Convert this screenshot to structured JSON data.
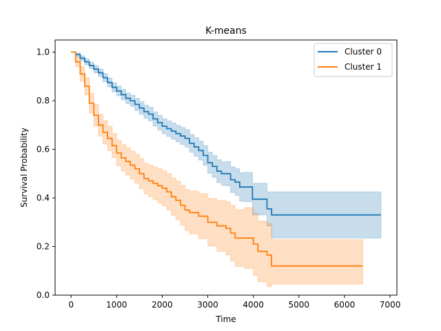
{
  "chart_data": {
    "type": "line",
    "title": "K-means",
    "xlabel": "Time",
    "ylabel": "Survival Probability",
    "xlim": [
      -350,
      7150
    ],
    "ylim": [
      0,
      1.05
    ],
    "xticks": [
      0,
      1000,
      2000,
      3000,
      4000,
      5000,
      6000,
      7000
    ],
    "yticks": [
      0.0,
      0.2,
      0.4,
      0.6,
      0.8,
      1.0
    ],
    "xtick_labels": [
      "0",
      "1000",
      "2000",
      "3000",
      "4000",
      "5000",
      "6000",
      "7000"
    ],
    "ytick_labels": [
      "0.0",
      "0.2",
      "0.4",
      "0.6",
      "0.8",
      "1.0"
    ],
    "grid": false,
    "legend_position": "top-right",
    "series": [
      {
        "name": "Cluster 0",
        "color": "#1f77b4",
        "points": [
          [
            0,
            1.0
          ],
          [
            100,
            0.99
          ],
          [
            200,
            0.975
          ],
          [
            300,
            0.96
          ],
          [
            400,
            0.945
          ],
          [
            500,
            0.93
          ],
          [
            600,
            0.915
          ],
          [
            700,
            0.895
          ],
          [
            800,
            0.875
          ],
          [
            900,
            0.855
          ],
          [
            1000,
            0.84
          ],
          [
            1100,
            0.825
          ],
          [
            1200,
            0.81
          ],
          [
            1300,
            0.8
          ],
          [
            1400,
            0.785
          ],
          [
            1500,
            0.77
          ],
          [
            1600,
            0.755
          ],
          [
            1700,
            0.745
          ],
          [
            1800,
            0.725
          ],
          [
            1900,
            0.71
          ],
          [
            2000,
            0.695
          ],
          [
            2100,
            0.685
          ],
          [
            2200,
            0.675
          ],
          [
            2300,
            0.665
          ],
          [
            2400,
            0.655
          ],
          [
            2500,
            0.645
          ],
          [
            2600,
            0.625
          ],
          [
            2700,
            0.61
          ],
          [
            2800,
            0.595
          ],
          [
            2900,
            0.575
          ],
          [
            3000,
            0.545
          ],
          [
            3100,
            0.53
          ],
          [
            3200,
            0.51
          ],
          [
            3300,
            0.5
          ],
          [
            3400,
            0.5
          ],
          [
            3500,
            0.475
          ],
          [
            3600,
            0.465
          ],
          [
            3700,
            0.445
          ],
          [
            3800,
            0.445
          ],
          [
            3900,
            0.445
          ],
          [
            3980,
            0.395
          ],
          [
            4100,
            0.395
          ],
          [
            4300,
            0.355
          ],
          [
            4400,
            0.33
          ],
          [
            5000,
            0.33
          ],
          [
            6000,
            0.33
          ],
          [
            6800,
            0.33
          ]
        ],
        "ci_upper": [
          [
            0,
            1.0
          ],
          [
            100,
            0.997
          ],
          [
            200,
            0.985
          ],
          [
            300,
            0.972
          ],
          [
            400,
            0.958
          ],
          [
            500,
            0.945
          ],
          [
            600,
            0.93
          ],
          [
            700,
            0.912
          ],
          [
            800,
            0.893
          ],
          [
            900,
            0.874
          ],
          [
            1000,
            0.86
          ],
          [
            1100,
            0.846
          ],
          [
            1200,
            0.832
          ],
          [
            1300,
            0.823
          ],
          [
            1400,
            0.81
          ],
          [
            1500,
            0.796
          ],
          [
            1600,
            0.782
          ],
          [
            1700,
            0.773
          ],
          [
            1800,
            0.754
          ],
          [
            1900,
            0.74
          ],
          [
            2000,
            0.726
          ],
          [
            2100,
            0.717
          ],
          [
            2200,
            0.708
          ],
          [
            2300,
            0.699
          ],
          [
            2400,
            0.69
          ],
          [
            2500,
            0.681
          ],
          [
            2600,
            0.662
          ],
          [
            2700,
            0.648
          ],
          [
            2800,
            0.634
          ],
          [
            2900,
            0.615
          ],
          [
            3000,
            0.588
          ],
          [
            3100,
            0.575
          ],
          [
            3200,
            0.557
          ],
          [
            3300,
            0.548
          ],
          [
            3400,
            0.55
          ],
          [
            3500,
            0.528
          ],
          [
            3600,
            0.52
          ],
          [
            3700,
            0.503
          ],
          [
            3800,
            0.505
          ],
          [
            3900,
            0.505
          ],
          [
            3980,
            0.46
          ],
          [
            4100,
            0.46
          ],
          [
            4300,
            0.425
          ],
          [
            4400,
            0.425
          ],
          [
            5000,
            0.425
          ],
          [
            6000,
            0.425
          ],
          [
            6800,
            0.425
          ]
        ],
        "ci_lower": [
          [
            0,
            1.0
          ],
          [
            100,
            0.983
          ],
          [
            200,
            0.965
          ],
          [
            300,
            0.948
          ],
          [
            400,
            0.932
          ],
          [
            500,
            0.915
          ],
          [
            600,
            0.9
          ],
          [
            700,
            0.878
          ],
          [
            800,
            0.857
          ],
          [
            900,
            0.836
          ],
          [
            1000,
            0.82
          ],
          [
            1100,
            0.804
          ],
          [
            1200,
            0.788
          ],
          [
            1300,
            0.777
          ],
          [
            1400,
            0.76
          ],
          [
            1500,
            0.744
          ],
          [
            1600,
            0.728
          ],
          [
            1700,
            0.717
          ],
          [
            1800,
            0.696
          ],
          [
            1900,
            0.68
          ],
          [
            2000,
            0.664
          ],
          [
            2100,
            0.653
          ],
          [
            2200,
            0.642
          ],
          [
            2300,
            0.631
          ],
          [
            2400,
            0.62
          ],
          [
            2500,
            0.609
          ],
          [
            2600,
            0.588
          ],
          [
            2700,
            0.572
          ],
          [
            2800,
            0.556
          ],
          [
            2900,
            0.535
          ],
          [
            3000,
            0.502
          ],
          [
            3100,
            0.485
          ],
          [
            3200,
            0.463
          ],
          [
            3300,
            0.452
          ],
          [
            3400,
            0.45
          ],
          [
            3500,
            0.422
          ],
          [
            3600,
            0.41
          ],
          [
            3700,
            0.387
          ],
          [
            3800,
            0.385
          ],
          [
            3900,
            0.385
          ],
          [
            3980,
            0.33
          ],
          [
            4100,
            0.33
          ],
          [
            4300,
            0.285
          ],
          [
            4400,
            0.235
          ],
          [
            5000,
            0.235
          ],
          [
            6000,
            0.235
          ],
          [
            6800,
            0.235
          ]
        ]
      },
      {
        "name": "Cluster 1",
        "color": "#ff7f0e",
        "points": [
          [
            0,
            1.0
          ],
          [
            100,
            0.96
          ],
          [
            200,
            0.91
          ],
          [
            300,
            0.86
          ],
          [
            400,
            0.79
          ],
          [
            500,
            0.74
          ],
          [
            600,
            0.7
          ],
          [
            700,
            0.67
          ],
          [
            800,
            0.645
          ],
          [
            900,
            0.615
          ],
          [
            1000,
            0.585
          ],
          [
            1100,
            0.565
          ],
          [
            1200,
            0.55
          ],
          [
            1300,
            0.535
          ],
          [
            1400,
            0.52
          ],
          [
            1500,
            0.5
          ],
          [
            1600,
            0.48
          ],
          [
            1700,
            0.47
          ],
          [
            1800,
            0.46
          ],
          [
            1900,
            0.45
          ],
          [
            2000,
            0.44
          ],
          [
            2100,
            0.425
          ],
          [
            2200,
            0.405
          ],
          [
            2300,
            0.39
          ],
          [
            2400,
            0.37
          ],
          [
            2500,
            0.35
          ],
          [
            2600,
            0.34
          ],
          [
            2800,
            0.325
          ],
          [
            3000,
            0.3
          ],
          [
            3200,
            0.285
          ],
          [
            3400,
            0.275
          ],
          [
            3500,
            0.255
          ],
          [
            3600,
            0.235
          ],
          [
            3800,
            0.235
          ],
          [
            4000,
            0.21
          ],
          [
            4100,
            0.18
          ],
          [
            4300,
            0.165
          ],
          [
            4400,
            0.12
          ],
          [
            5000,
            0.12
          ],
          [
            6000,
            0.12
          ],
          [
            6400,
            0.12
          ]
        ],
        "ci_upper": [
          [
            0,
            1.0
          ],
          [
            100,
            0.98
          ],
          [
            200,
            0.94
          ],
          [
            300,
            0.895
          ],
          [
            400,
            0.83
          ],
          [
            500,
            0.785
          ],
          [
            600,
            0.745
          ],
          [
            700,
            0.718
          ],
          [
            800,
            0.695
          ],
          [
            900,
            0.665
          ],
          [
            1000,
            0.638
          ],
          [
            1100,
            0.62
          ],
          [
            1200,
            0.607
          ],
          [
            1300,
            0.593
          ],
          [
            1400,
            0.58
          ],
          [
            1500,
            0.562
          ],
          [
            1600,
            0.543
          ],
          [
            1700,
            0.535
          ],
          [
            1800,
            0.527
          ],
          [
            1900,
            0.52
          ],
          [
            2000,
            0.512
          ],
          [
            2100,
            0.5
          ],
          [
            2200,
            0.482
          ],
          [
            2300,
            0.47
          ],
          [
            2400,
            0.452
          ],
          [
            2500,
            0.435
          ],
          [
            2600,
            0.428
          ],
          [
            2800,
            0.418
          ],
          [
            3000,
            0.398
          ],
          [
            3200,
            0.39
          ],
          [
            3400,
            0.385
          ],
          [
            3500,
            0.37
          ],
          [
            3600,
            0.352
          ],
          [
            3800,
            0.36
          ],
          [
            4000,
            0.338
          ],
          [
            4100,
            0.305
          ],
          [
            4300,
            0.295
          ],
          [
            4400,
            0.228
          ],
          [
            5000,
            0.228
          ],
          [
            6000,
            0.228
          ],
          [
            6400,
            0.228
          ]
        ],
        "ci_lower": [
          [
            0,
            1.0
          ],
          [
            100,
            0.94
          ],
          [
            200,
            0.88
          ],
          [
            300,
            0.825
          ],
          [
            400,
            0.75
          ],
          [
            500,
            0.695
          ],
          [
            600,
            0.655
          ],
          [
            700,
            0.622
          ],
          [
            800,
            0.595
          ],
          [
            900,
            0.565
          ],
          [
            1000,
            0.532
          ],
          [
            1100,
            0.51
          ],
          [
            1200,
            0.493
          ],
          [
            1300,
            0.477
          ],
          [
            1400,
            0.46
          ],
          [
            1500,
            0.438
          ],
          [
            1600,
            0.417
          ],
          [
            1700,
            0.405
          ],
          [
            1800,
            0.393
          ],
          [
            1900,
            0.38
          ],
          [
            2000,
            0.368
          ],
          [
            2100,
            0.35
          ],
          [
            2200,
            0.328
          ],
          [
            2300,
            0.31
          ],
          [
            2400,
            0.288
          ],
          [
            2500,
            0.265
          ],
          [
            2600,
            0.252
          ],
          [
            2800,
            0.232
          ],
          [
            3000,
            0.202
          ],
          [
            3200,
            0.18
          ],
          [
            3400,
            0.165
          ],
          [
            3500,
            0.14
          ],
          [
            3600,
            0.118
          ],
          [
            3800,
            0.11
          ],
          [
            4000,
            0.082
          ],
          [
            4100,
            0.055
          ],
          [
            4300,
            0.035
          ],
          [
            4400,
            0.045
          ],
          [
            5000,
            0.045
          ],
          [
            6000,
            0.045
          ],
          [
            6400,
            0.045
          ]
        ]
      }
    ]
  }
}
